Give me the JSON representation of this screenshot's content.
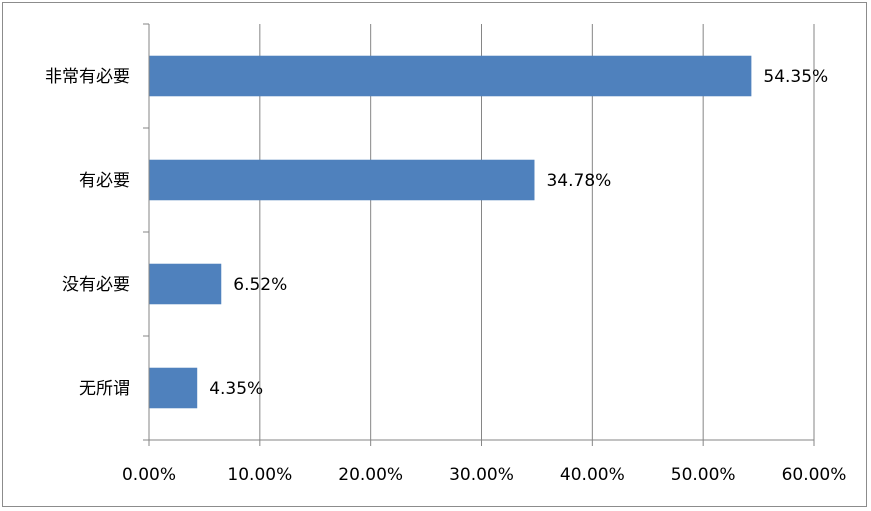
{
  "chart_data": {
    "type": "bar",
    "orientation": "horizontal",
    "title": "",
    "xlabel": "",
    "ylabel": "",
    "categories": [
      "非常有必要",
      "有必要",
      "没有必要",
      "无所谓"
    ],
    "values": [
      54.35,
      34.78,
      6.52,
      4.35
    ],
    "data_labels": [
      "54.35%",
      "34.78%",
      "6.52%",
      "4.35%"
    ],
    "xlim": [
      0,
      60
    ],
    "x_ticks": [
      0,
      10,
      20,
      30,
      40,
      50,
      60
    ],
    "x_tick_labels": [
      "0.00%",
      "10.00%",
      "20.00%",
      "30.00%",
      "40.00%",
      "50.00%",
      "60.00%"
    ],
    "grid": "vertical",
    "legend": "none",
    "colors": {
      "bar": "#4f81bd",
      "grid": "#868686",
      "axis": "#868686"
    }
  }
}
